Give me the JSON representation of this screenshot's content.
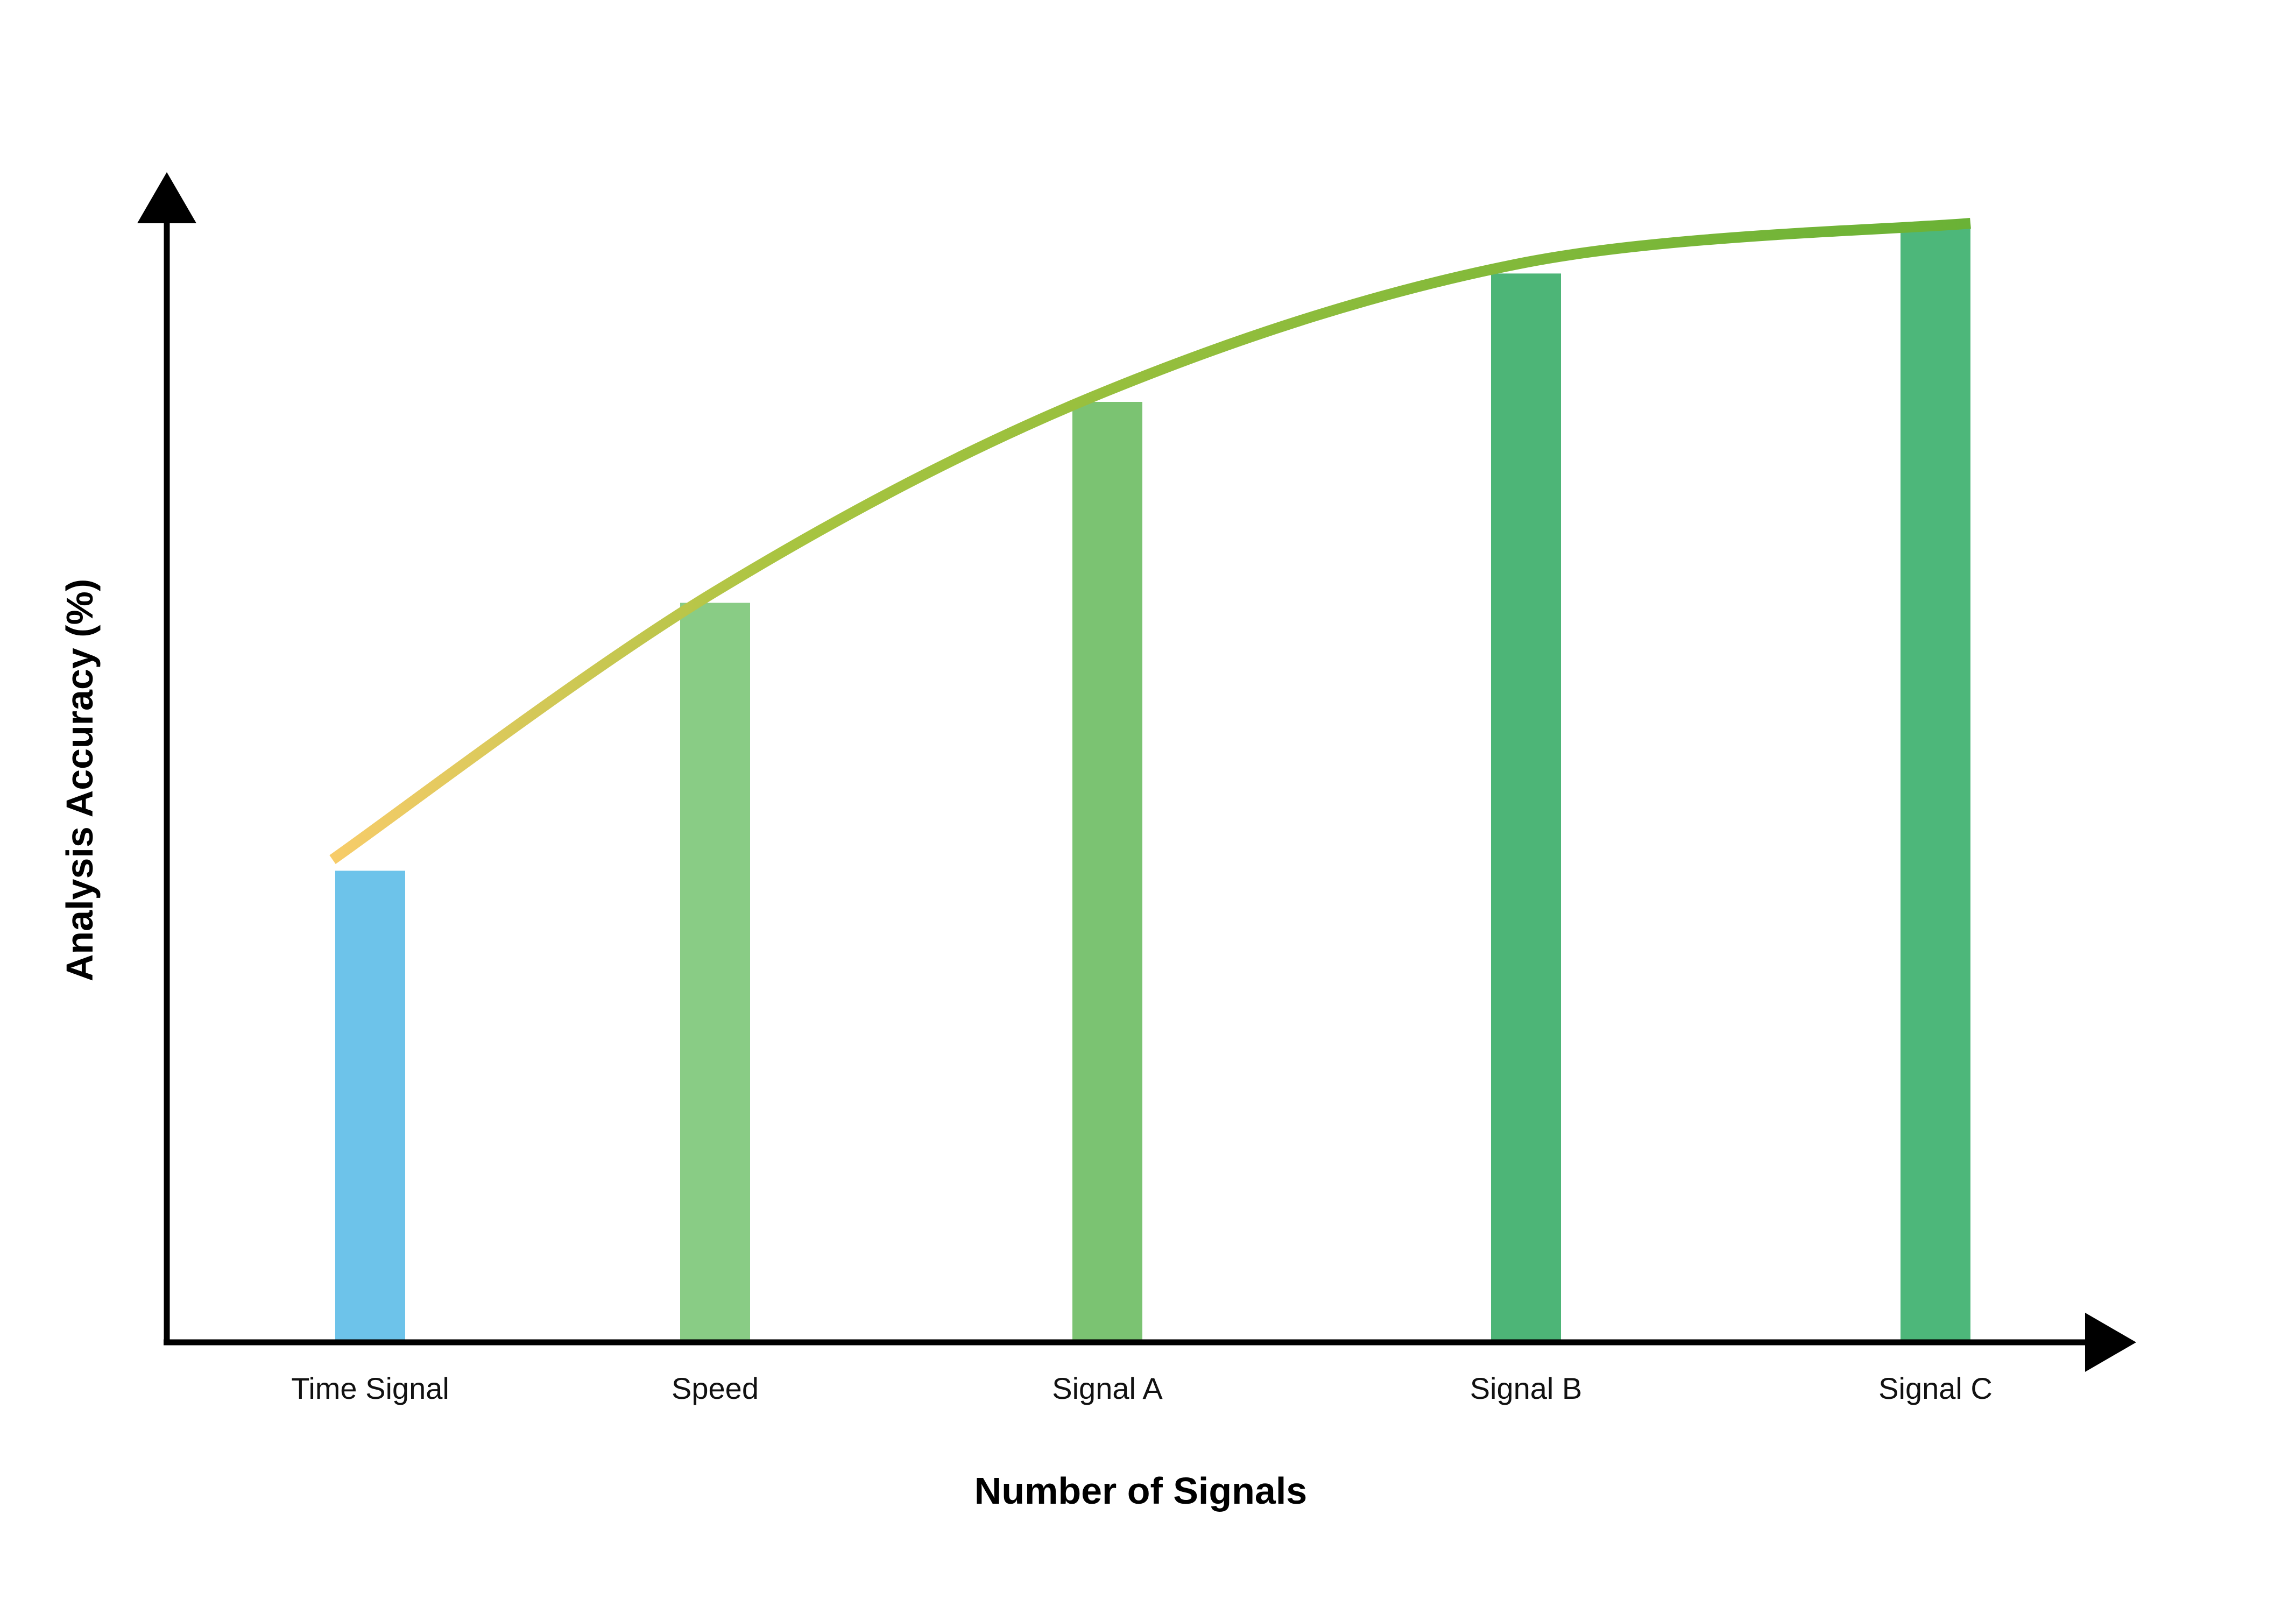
{
  "chart_data": {
    "type": "bar",
    "title": "",
    "xlabel": "Number of Signals",
    "ylabel": "Analysis Accuracy (%)",
    "categories": [
      "Time Signal",
      "Speed",
      "Signal A",
      "Signal B",
      "Signal C"
    ],
    "values": [
      42,
      66,
      84,
      95.5,
      100
    ],
    "ylim": [
      0,
      100
    ],
    "bar_colors": [
      "#6DC3EA",
      "#89CC85",
      "#7BC372",
      "#4DB577",
      "#4DB77A"
    ],
    "trend_line": {
      "x": [
        "Time Signal",
        "Speed",
        "Signal A",
        "Signal B",
        "Signal C"
      ],
      "y": [
        43,
        67,
        85,
        96.5,
        100
      ],
      "gradient_colors": [
        "#F8CC6A",
        "#A8C440",
        "#6AB236"
      ]
    },
    "grid": false,
    "legend": "none"
  }
}
